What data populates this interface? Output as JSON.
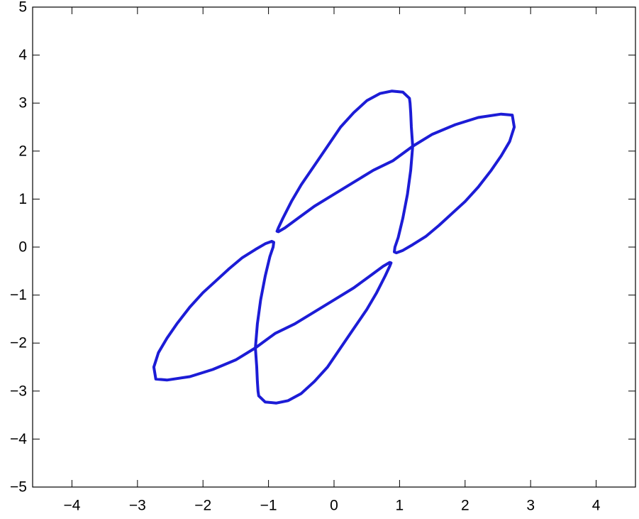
{
  "chart_data": {
    "type": "line",
    "title": "",
    "xlabel": "",
    "ylabel": "",
    "xlim": [
      -4.6,
      4.6
    ],
    "ylim": [
      -5,
      5
    ],
    "grid": false,
    "legend": "none",
    "x_ticks": [
      {
        "value": -4,
        "label": "−4"
      },
      {
        "value": -3,
        "label": "−3"
      },
      {
        "value": -2,
        "label": "−2"
      },
      {
        "value": -1,
        "label": "−1"
      },
      {
        "value": 0,
        "label": "0"
      },
      {
        "value": 1,
        "label": "1"
      },
      {
        "value": 2,
        "label": "2"
      },
      {
        "value": 3,
        "label": "3"
      },
      {
        "value": 4,
        "label": "4"
      }
    ],
    "y_ticks": [
      {
        "value": 5,
        "label": "5"
      },
      {
        "value": 4,
        "label": "4"
      },
      {
        "value": 3,
        "label": "3"
      },
      {
        "value": 2,
        "label": "2"
      },
      {
        "value": 1,
        "label": "1"
      },
      {
        "value": 0,
        "label": "0"
      },
      {
        "value": -1,
        "label": "−1"
      },
      {
        "value": -2,
        "label": "−2"
      },
      {
        "value": -3,
        "label": "−3"
      },
      {
        "value": -4,
        "label": "−4"
      },
      {
        "value": -5,
        "label": "−5"
      }
    ],
    "series": [
      {
        "color": "#1c1cd6",
        "x": [
          1.2,
          1.18,
          1.17,
          1.16,
          1.15,
          1.05,
          0.88,
          0.7,
          0.5,
          0.3,
          0.1,
          -0.1,
          -0.3,
          -0.5,
          -0.65,
          -0.78,
          -0.85,
          -0.87,
          -0.85,
          -0.75,
          -0.55,
          -0.3,
          0.0,
          0.3,
          0.6,
          0.9,
          1.2,
          1.5,
          1.85,
          2.2,
          2.55,
          2.72,
          2.75,
          2.68,
          2.55,
          2.4,
          2.2,
          2.0,
          1.8,
          1.6,
          1.4,
          1.2,
          1.05,
          0.95,
          0.92,
          0.93,
          0.98,
          1.05,
          1.12,
          1.17,
          1.2
        ],
        "y": [
          2.1,
          2.5,
          2.8,
          3.0,
          3.1,
          3.23,
          3.25,
          3.2,
          3.05,
          2.8,
          2.5,
          2.1,
          1.7,
          1.3,
          0.95,
          0.6,
          0.4,
          0.33,
          0.32,
          0.4,
          0.6,
          0.85,
          1.1,
          1.35,
          1.6,
          1.8,
          2.1,
          2.35,
          2.55,
          2.7,
          2.77,
          2.75,
          2.5,
          2.2,
          1.9,
          1.6,
          1.25,
          0.95,
          0.7,
          0.45,
          0.22,
          0.05,
          -0.07,
          -0.12,
          -0.1,
          0.0,
          0.2,
          0.6,
          1.1,
          1.6,
          2.1
        ]
      },
      {
        "color": "#1c1cd6",
        "x": [
          -1.2,
          -1.18,
          -1.17,
          -1.16,
          -1.15,
          -1.05,
          -0.88,
          -0.7,
          -0.5,
          -0.3,
          -0.1,
          0.1,
          0.3,
          0.5,
          0.65,
          0.78,
          0.85,
          0.87,
          0.85,
          0.75,
          0.55,
          0.3,
          0.0,
          -0.3,
          -0.6,
          -0.9,
          -1.2,
          -1.5,
          -1.85,
          -2.2,
          -2.55,
          -2.72,
          -2.75,
          -2.68,
          -2.55,
          -2.4,
          -2.2,
          -2.0,
          -1.8,
          -1.6,
          -1.4,
          -1.2,
          -1.05,
          -0.95,
          -0.92,
          -0.93,
          -0.98,
          -1.05,
          -1.12,
          -1.17,
          -1.2
        ],
        "y": [
          -2.1,
          -2.5,
          -2.8,
          -3.0,
          -3.1,
          -3.23,
          -3.25,
          -3.2,
          -3.05,
          -2.8,
          -2.5,
          -2.1,
          -1.7,
          -1.3,
          -0.95,
          -0.6,
          -0.4,
          -0.33,
          -0.32,
          -0.4,
          -0.6,
          -0.85,
          -1.1,
          -1.35,
          -1.6,
          -1.8,
          -2.1,
          -2.35,
          -2.55,
          -2.7,
          -2.77,
          -2.75,
          -2.5,
          -2.2,
          -1.9,
          -1.6,
          -1.25,
          -0.95,
          -0.7,
          -0.45,
          -0.22,
          -0.05,
          0.07,
          0.12,
          0.1,
          0.0,
          -0.2,
          -0.6,
          -1.1,
          -1.6,
          -2.1
        ]
      }
    ]
  }
}
